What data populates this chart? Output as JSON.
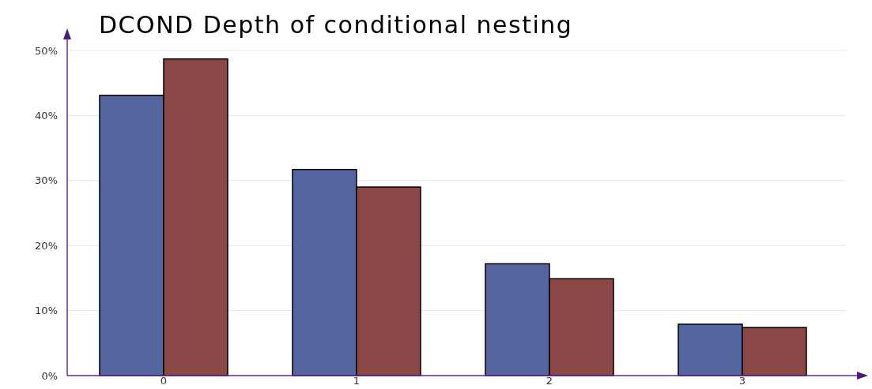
{
  "chart_data": {
    "type": "bar",
    "title": "DCOND Depth of conditional nesting",
    "categories": [
      "0",
      "1",
      "2",
      "3"
    ],
    "series": [
      {
        "color": "#5465a0",
        "values": [
          43.1,
          31.7,
          17.2,
          7.9
        ]
      },
      {
        "color": "#8b4646",
        "values": [
          48.7,
          29.0,
          14.9,
          7.4
        ]
      }
    ],
    "ylim": [
      0,
      50
    ],
    "yticks": [
      {
        "value": 0,
        "label": "0%"
      },
      {
        "value": 10,
        "label": "10%"
      },
      {
        "value": 20,
        "label": "20%"
      },
      {
        "value": 30,
        "label": "30%"
      },
      {
        "value": 40,
        "label": "40%"
      },
      {
        "value": 50,
        "label": "50%"
      }
    ],
    "grid": "y"
  }
}
